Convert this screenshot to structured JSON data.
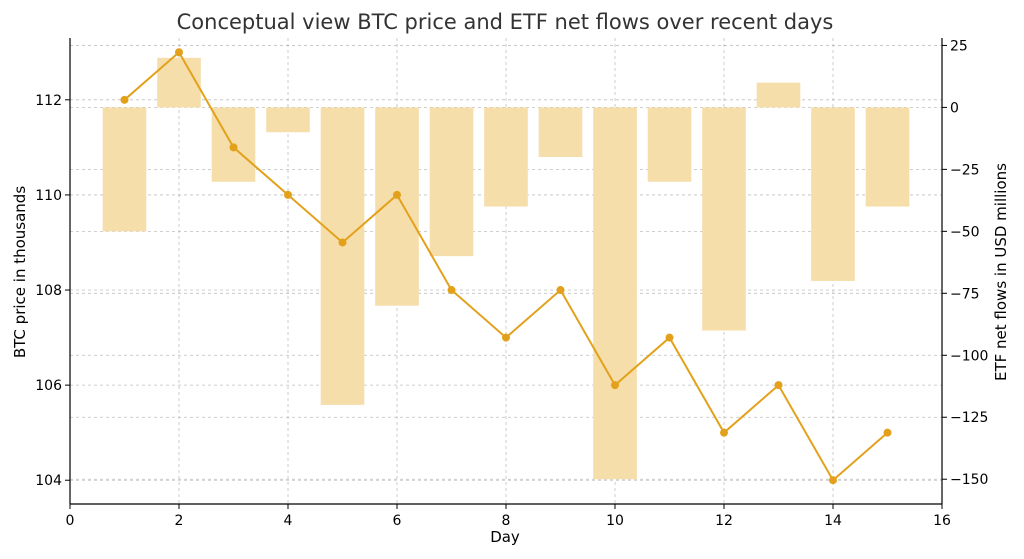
{
  "chart_data": {
    "type": "bar+line",
    "title": "Conceptual view  BTC price and ETF net flows over recent days",
    "xlabel": "Day",
    "ylabel_left": "BTC price in thousands",
    "ylabel_right": "ETF net flows in USD millions",
    "x": [
      1,
      2,
      3,
      4,
      5,
      6,
      7,
      8,
      9,
      10,
      11,
      12,
      13,
      14,
      15
    ],
    "series": [
      {
        "kind": "line",
        "axis": "left",
        "color": "#e3a11b",
        "values": [
          112,
          113,
          111,
          110,
          109,
          110,
          108,
          107,
          108,
          106,
          107,
          105,
          106,
          104,
          105
        ]
      },
      {
        "kind": "bar",
        "axis": "right",
        "color": "#f5deaa",
        "values": [
          -50,
          20,
          -30,
          -10,
          -120,
          -80,
          -60,
          -40,
          -20,
          -150,
          -30,
          -90,
          10,
          -70,
          -40
        ]
      }
    ],
    "xlim": [
      0,
      16
    ],
    "ylim_left": [
      103.5,
      113.3
    ],
    "ylim_right": [
      -160,
      28
    ],
    "xticks": [
      0,
      2,
      4,
      6,
      8,
      10,
      12,
      14,
      16
    ],
    "yticks_left": [
      104,
      106,
      108,
      110,
      112
    ],
    "yticks_right": [
      -150,
      -125,
      -100,
      -75,
      -50,
      -25,
      0,
      25
    ],
    "yticklabels_right": [
      "−150",
      "−125",
      "−100",
      "−75",
      "−50",
      "−25",
      "0",
      "25"
    ],
    "grid": true
  }
}
